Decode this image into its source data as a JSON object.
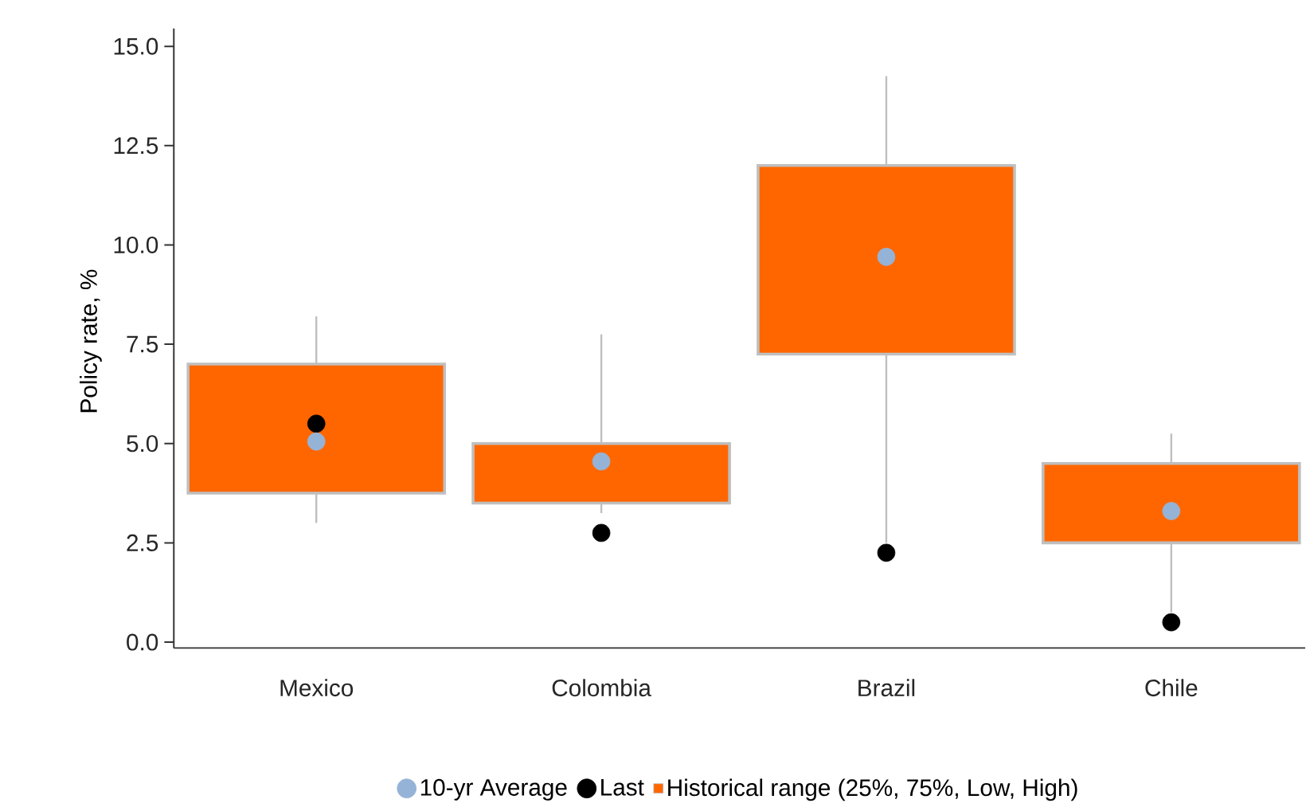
{
  "chart_data": {
    "type": "box",
    "ylabel": "Policy rate, %",
    "categories": [
      "Mexico",
      "Colombia",
      "Brazil",
      "Chile"
    ],
    "ylim": [
      -0.15,
      15.45
    ],
    "yticks": [
      {
        "value": 0,
        "label": "0.0"
      },
      {
        "value": 2.5,
        "label": "2.5"
      },
      {
        "value": 5,
        "label": "5.0"
      },
      {
        "value": 7.5,
        "label": "7.5"
      },
      {
        "value": 10,
        "label": "10.0"
      },
      {
        "value": 12.5,
        "label": "12.5"
      },
      {
        "value": 15,
        "label": "15.0"
      }
    ],
    "legend": "bottom",
    "series": [
      {
        "name": "10-yr Average",
        "type": "scatter",
        "color": "#95b3d7",
        "values": [
          5.05,
          4.55,
          9.7,
          3.3
        ]
      },
      {
        "name": "Last",
        "type": "scatter",
        "color": "#000000",
        "values": [
          5.5,
          2.75,
          2.25,
          0.5
        ]
      },
      {
        "name": "Historical range (25%, 75%, Low, High)",
        "color": "#ff6600",
        "boxes": [
          {
            "low": 3.0,
            "q1": 3.75,
            "q3": 7.0,
            "high": 8.2
          },
          {
            "low": 3.25,
            "q1": 3.5,
            "q3": 5.0,
            "high": 7.75
          },
          {
            "low": 2.5,
            "q1": 7.25,
            "q3": 12.0,
            "high": 14.25
          },
          {
            "low": 0.75,
            "q1": 2.5,
            "q3": 4.5,
            "high": 5.25
          }
        ]
      }
    ]
  }
}
